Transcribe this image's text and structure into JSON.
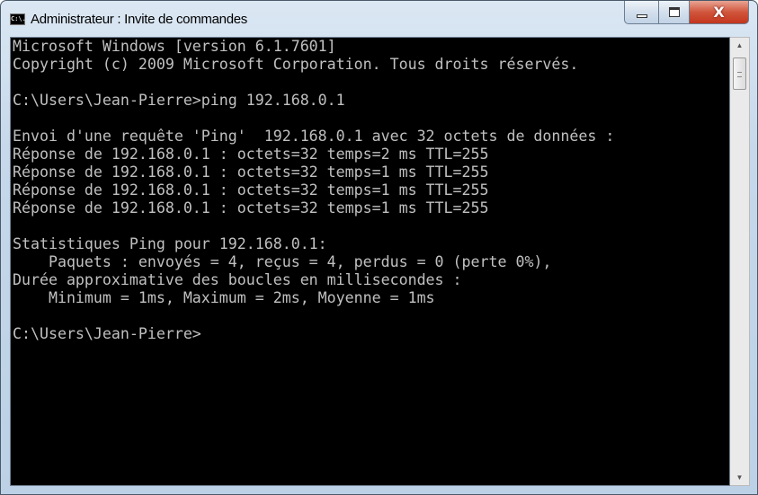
{
  "window": {
    "title": "Administrateur : Invite de commandes",
    "icon": "cmd-icon",
    "icon_text": "C:\\.",
    "minimize": "minimize-icon",
    "maximize": "maximize-icon",
    "close_label": "X"
  },
  "console": {
    "lines": [
      "Microsoft Windows [version 6.1.7601]",
      "Copyright (c) 2009 Microsoft Corporation. Tous droits réservés.",
      "",
      "C:\\Users\\Jean-Pierre>ping 192.168.0.1",
      "",
      "Envoi d'une requête 'Ping'  192.168.0.1 avec 32 octets de données :",
      "Réponse de 192.168.0.1 : octets=32 temps=2 ms TTL=255",
      "Réponse de 192.168.0.1 : octets=32 temps=1 ms TTL=255",
      "Réponse de 192.168.0.1 : octets=32 temps=1 ms TTL=255",
      "Réponse de 192.168.0.1 : octets=32 temps=1 ms TTL=255",
      "",
      "Statistiques Ping pour 192.168.0.1:",
      "    Paquets : envoyés = 4, reçus = 4, perdus = 0 (perte 0%),",
      "Durée approximative des boucles en millisecondes :",
      "    Minimum = 1ms, Maximum = 2ms, Moyenne = 1ms",
      "",
      "C:\\Users\\Jean-Pierre>"
    ]
  },
  "scrollbar": {
    "position_fraction": 0.0,
    "up": "▲",
    "down": "▼"
  }
}
